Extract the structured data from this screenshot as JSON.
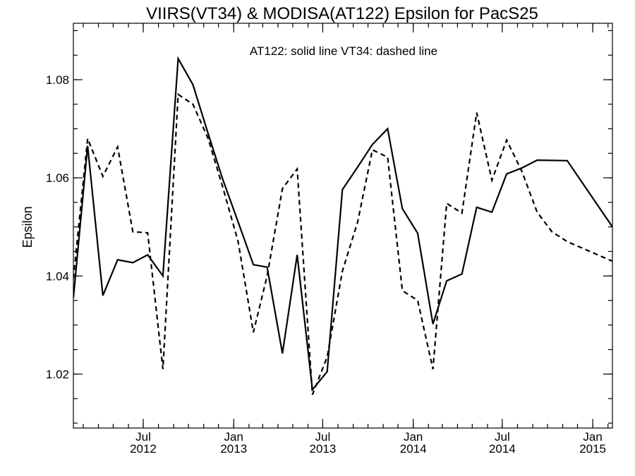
{
  "chart_data": {
    "type": "line",
    "title": "VIIRS(VT34) & MODISA(AT122)  Epsilon for PacS25",
    "annotation": "AT122: solid line   VT34: dashed line",
    "xlabel": "",
    "ylabel": "Epsilon",
    "xlim": [
      "2012-02-10",
      "2015-02-10"
    ],
    "ylim": [
      1.009,
      1.0915
    ],
    "y_ticks": [
      {
        "value": 1.02,
        "label": "1.02"
      },
      {
        "value": 1.04,
        "label": "1.04"
      },
      {
        "value": 1.06,
        "label": "1.06"
      },
      {
        "value": 1.08,
        "label": "1.08"
      }
    ],
    "y_minor_step": 0.005,
    "x_ticks": [
      {
        "date": "2012-07-01",
        "label1": "Jul",
        "label2": "2012"
      },
      {
        "date": "2013-01-01",
        "label1": "Jan",
        "label2": "2013"
      },
      {
        "date": "2013-07-01",
        "label1": "Jul",
        "label2": "2013"
      },
      {
        "date": "2014-01-01",
        "label1": "Jan",
        "label2": "2014"
      },
      {
        "date": "2014-07-01",
        "label1": "Jul",
        "label2": "2014"
      },
      {
        "date": "2015-01-01",
        "label1": "Jan",
        "label2": "2015"
      }
    ],
    "x_minor_months": 1,
    "grid": false,
    "series": [
      {
        "name": "AT122",
        "style": "solid",
        "x": [
          "2012-02-10",
          "2012-03-10",
          "2012-04-10",
          "2012-05-10",
          "2012-06-10",
          "2012-07-10",
          "2012-08-10",
          "2012-09-10",
          "2012-10-10",
          "2012-11-10",
          "2012-12-10",
          "2013-01-10",
          "2013-02-10",
          "2013-03-10",
          "2013-04-10",
          "2013-05-10",
          "2013-06-10",
          "2013-07-10",
          "2013-08-10",
          "2013-09-10",
          "2013-10-10",
          "2013-11-10",
          "2013-12-10",
          "2014-01-10",
          "2014-02-10",
          "2014-03-10",
          "2014-04-10",
          "2014-05-10",
          "2014-06-10",
          "2014-07-10",
          "2014-08-10",
          "2014-09-10",
          "2014-11-10",
          "2015-02-10"
        ],
        "values": [
          1.0355,
          1.0665,
          1.036,
          1.0433,
          1.0427,
          1.0443,
          1.04,
          1.0843,
          1.079,
          1.069,
          1.0596,
          1.051,
          1.0423,
          1.0418,
          1.0242,
          1.0443,
          1.0168,
          1.0205,
          1.0576,
          1.0622,
          1.0668,
          1.07,
          1.0537,
          1.0487,
          1.0302,
          1.039,
          1.0404,
          1.054,
          1.053,
          1.0608,
          1.062,
          1.0636,
          1.0635,
          1.05
        ]
      },
      {
        "name": "VT34",
        "style": "dashed",
        "x": [
          "2012-02-10",
          "2012-03-10",
          "2012-04-10",
          "2012-05-10",
          "2012-06-10",
          "2012-07-10",
          "2012-08-10",
          "2012-09-10",
          "2012-10-10",
          "2012-11-10",
          "2012-12-10",
          "2013-01-10",
          "2013-02-10",
          "2013-03-10",
          "2013-04-10",
          "2013-05-10",
          "2013-06-10",
          "2013-07-10",
          "2013-08-10",
          "2013-09-10",
          "2013-10-10",
          "2013-11-10",
          "2013-12-10",
          "2014-01-10",
          "2014-02-10",
          "2014-03-10",
          "2014-04-10",
          "2014-05-10",
          "2014-06-10",
          "2014-07-10",
          "2014-08-10",
          "2014-09-10",
          "2014-10-10",
          "2014-11-10",
          "2015-02-10"
        ],
        "values": [
          1.0395,
          1.068,
          1.0603,
          1.0663,
          1.049,
          1.0488,
          1.021,
          1.077,
          1.075,
          1.068,
          1.058,
          1.047,
          1.0285,
          1.04,
          1.0578,
          1.0618,
          1.0158,
          1.0235,
          1.041,
          1.051,
          1.0657,
          1.0642,
          1.037,
          1.035,
          1.021,
          1.0548,
          1.0528,
          1.0733,
          1.0595,
          1.0677,
          1.0613,
          1.053,
          1.049,
          1.047,
          1.043
        ]
      }
    ]
  }
}
